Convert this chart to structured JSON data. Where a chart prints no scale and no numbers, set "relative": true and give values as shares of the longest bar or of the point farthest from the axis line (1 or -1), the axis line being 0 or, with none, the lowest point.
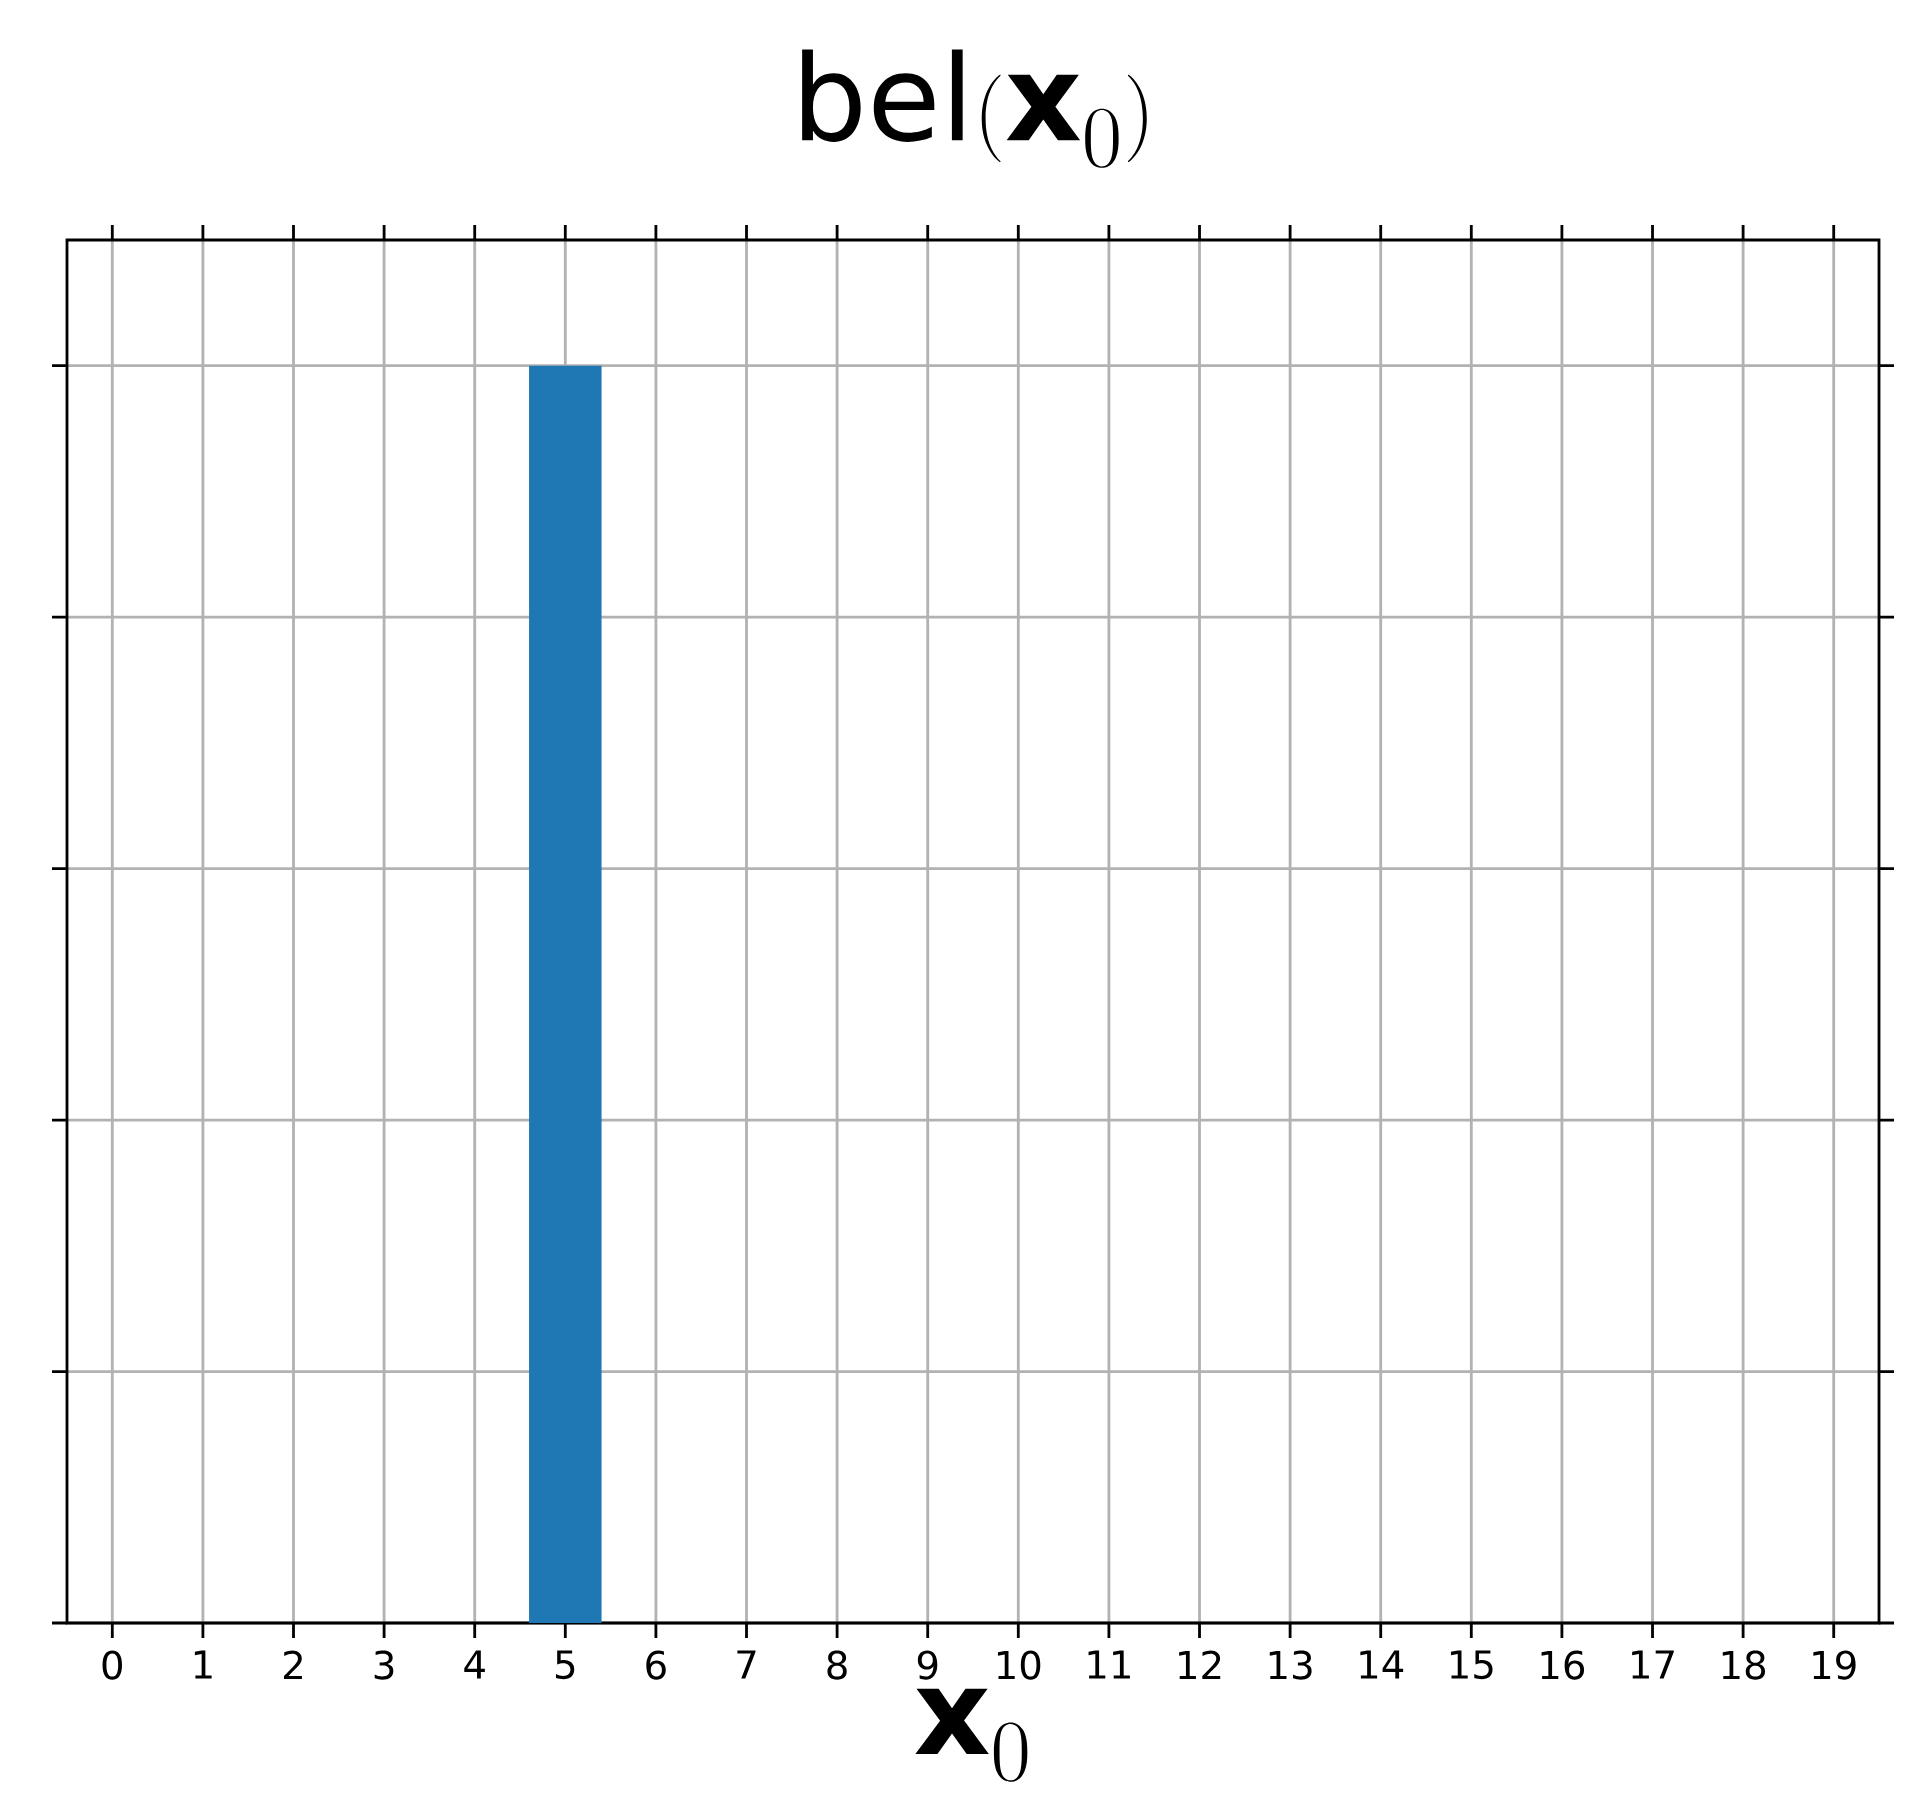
{
  "chart_data": {
    "type": "bar",
    "title": "\\mathrm{bel}(\\mathbf{x}_0)",
    "xlabel": "\\mathbf{x}_0",
    "categories": [
      "0",
      "1",
      "2",
      "3",
      "4",
      "5",
      "6",
      "7",
      "8",
      "9",
      "10",
      "11",
      "12",
      "13",
      "14",
      "15",
      "16",
      "17",
      "18",
      "19"
    ],
    "values": [
      0,
      0,
      0,
      0,
      0,
      1,
      0,
      0,
      0,
      0,
      0,
      0,
      0,
      0,
      0,
      0,
      0,
      0,
      0,
      0
    ],
    "color": "#1f77b4",
    "relative": true,
    "grid": true
  }
}
